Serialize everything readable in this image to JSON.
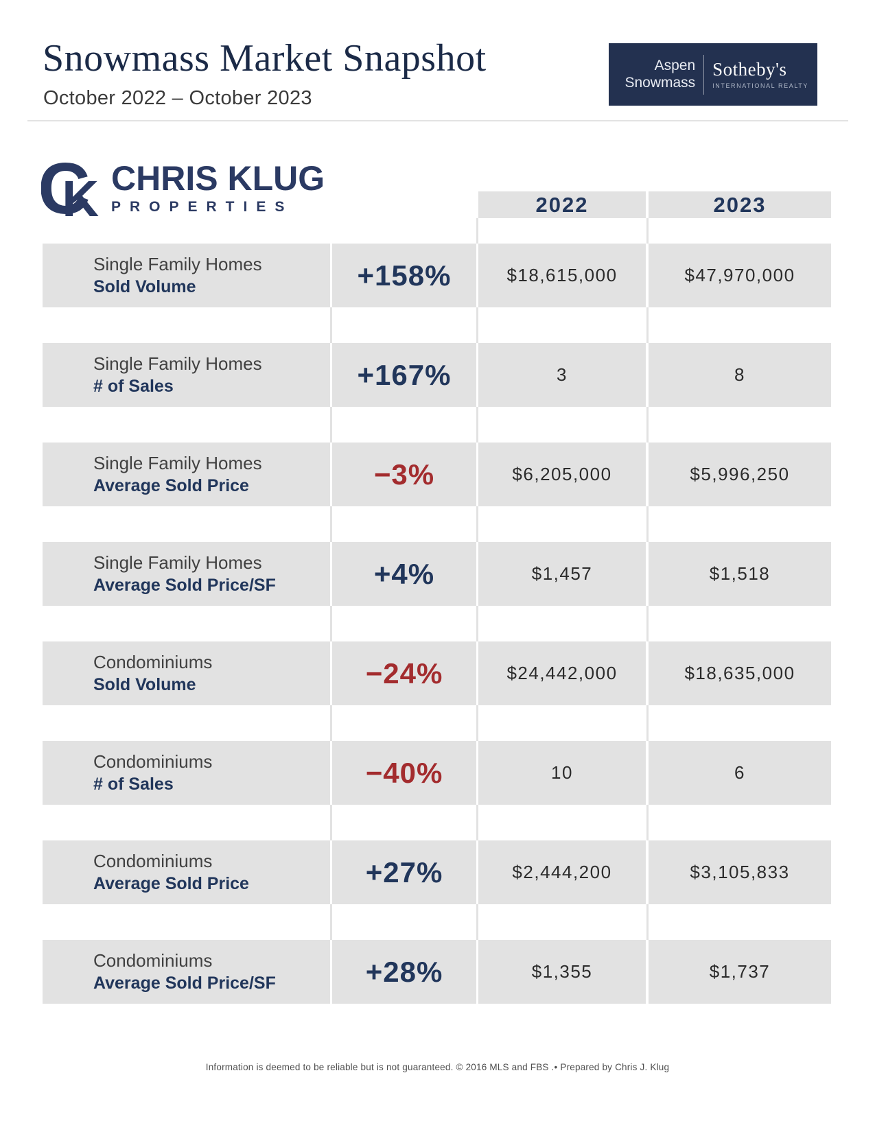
{
  "page": {
    "title": "Snowmass Market Snapshot",
    "date_range": "October 2022 – October 2023"
  },
  "brand": {
    "location_line1": "Aspen",
    "location_line2": "Snowmass",
    "name": "Sotheby's",
    "tagline": "INTERNATIONAL REALTY"
  },
  "agency": {
    "monogram": "CK",
    "name": "CHRIS KLUG",
    "subname": "PROPERTIES"
  },
  "table": {
    "columns": [
      "2022",
      "2023"
    ],
    "rows": [
      {
        "category": "Single Family Homes",
        "metric": "Sold Volume",
        "change": "+158%",
        "direction": "up",
        "values": [
          "$18,615,000",
          "$47,970,000"
        ]
      },
      {
        "category": "Single Family Homes",
        "metric": "# of Sales",
        "change": "+167%",
        "direction": "up",
        "values": [
          "3",
          "8"
        ]
      },
      {
        "category": "Single Family Homes",
        "metric": "Average Sold Price",
        "change": "−3%",
        "direction": "down",
        "values": [
          "$6,205,000",
          "$5,996,250"
        ]
      },
      {
        "category": "Single Family Homes",
        "metric": "Average Sold Price/SF",
        "change": "+4%",
        "direction": "up",
        "values": [
          "$1,457",
          "$1,518"
        ]
      },
      {
        "category": "Condominiums",
        "metric": "Sold Volume",
        "change": "−24%",
        "direction": "down",
        "values": [
          "$24,442,000",
          "$18,635,000"
        ]
      },
      {
        "category": "Condominiums",
        "metric": "# of Sales",
        "change": "−40%",
        "direction": "down",
        "values": [
          "10",
          "6"
        ]
      },
      {
        "category": "Condominiums",
        "metric": "Average Sold Price",
        "change": "+27%",
        "direction": "up",
        "values": [
          "$2,444,200",
          "$3,105,833"
        ]
      },
      {
        "category": "Condominiums",
        "metric": "Average Sold Price/SF",
        "change": "+28%",
        "direction": "up",
        "values": [
          "$1,355",
          "$1,737"
        ]
      }
    ]
  },
  "footer": {
    "disclaimer": "Information is deemed to be reliable but is not guaranteed. © 2016 MLS and FBS .• Prepared by Chris J. Klug"
  },
  "colors": {
    "navy": "#21365b",
    "red": "#a32c2e",
    "cell_gray": "#e2e2e2",
    "brand_navy": "#233150"
  }
}
